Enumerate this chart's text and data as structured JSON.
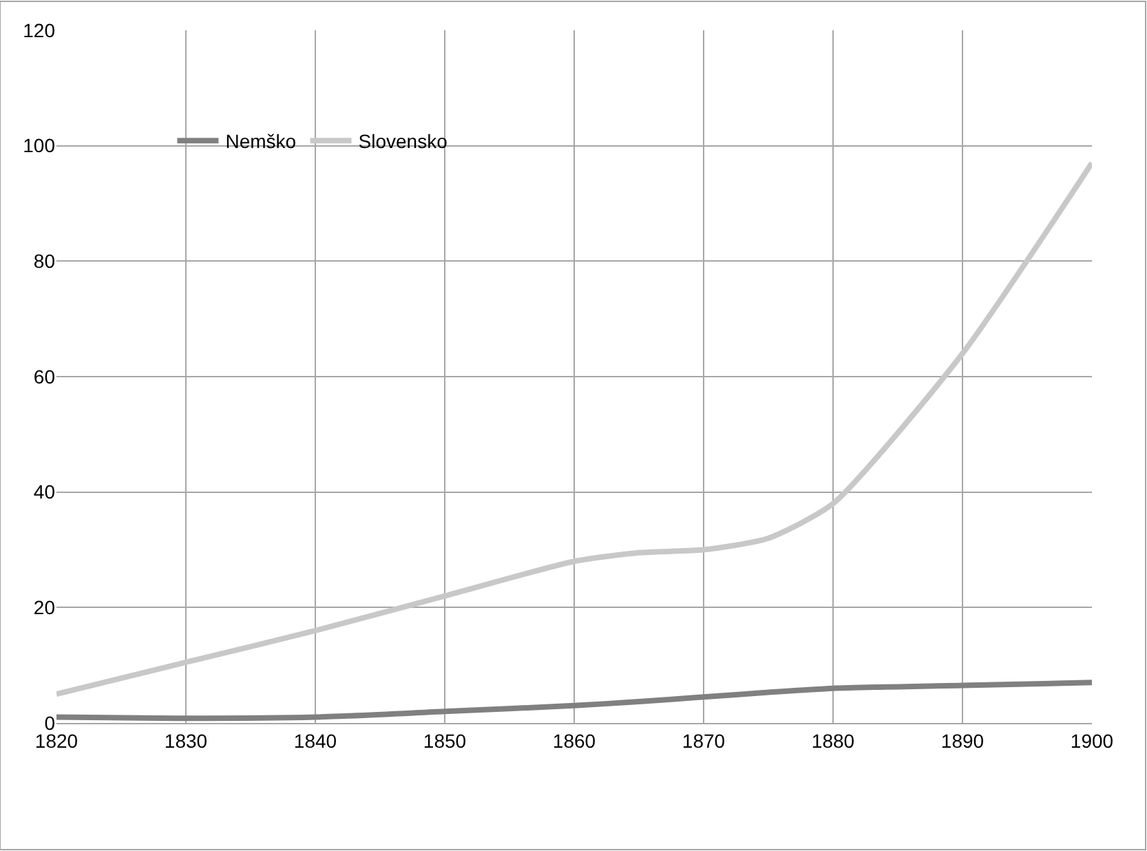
{
  "chart_data": {
    "type": "line",
    "x": [
      1820,
      1830,
      1840,
      1850,
      1860,
      1865,
      1870,
      1875,
      1880,
      1890,
      1900
    ],
    "series": [
      {
        "name": "Nemško",
        "color": "#808080",
        "values": [
          1,
          0.8,
          1,
          2,
          3,
          3.7,
          4.5,
          5.3,
          6,
          6.5,
          7
        ]
      },
      {
        "name": "Slovensko",
        "color": "#c8c8c8",
        "values": [
          5,
          10.5,
          16,
          22,
          28,
          29.5,
          30,
          32,
          38,
          64,
          97
        ]
      }
    ],
    "xlim": [
      1820,
      1900
    ],
    "xticks": [
      1820,
      1830,
      1840,
      1850,
      1860,
      1870,
      1880,
      1890,
      1900
    ],
    "ylim": [
      0,
      120
    ],
    "yticks": [
      0,
      20,
      40,
      60,
      80,
      100,
      120
    ],
    "grid": true,
    "legend": "top left",
    "marker": "none",
    "line_style": "solid"
  }
}
